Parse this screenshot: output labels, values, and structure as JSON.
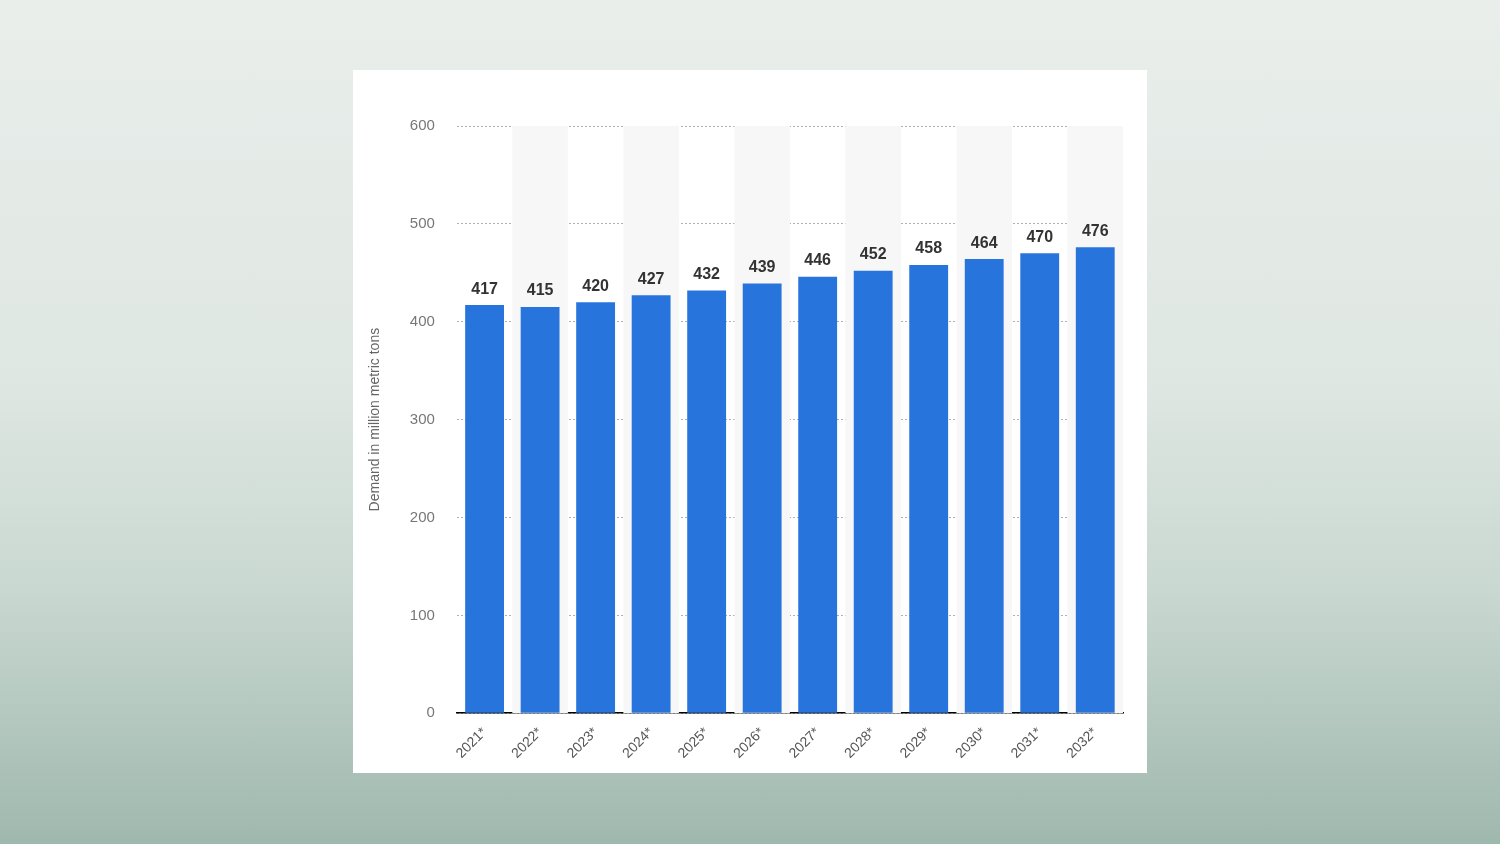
{
  "chart_data": {
    "type": "bar",
    "y_label": "Demand in million metric tons",
    "categories": [
      "2021*",
      "2022*",
      "2023*",
      "2024*",
      "2025*",
      "2026*",
      "2027*",
      "2028*",
      "2029*",
      "2030*",
      "2031*",
      "2032*"
    ],
    "values": [
      417,
      415,
      420,
      427,
      432,
      439,
      446,
      452,
      458,
      464,
      470,
      476
    ],
    "color": "#2874dd",
    "ylim": [
      0,
      600
    ],
    "yticks": [
      0,
      100,
      200,
      300,
      400,
      500,
      600
    ],
    "grid": true,
    "data_labels": true
  }
}
